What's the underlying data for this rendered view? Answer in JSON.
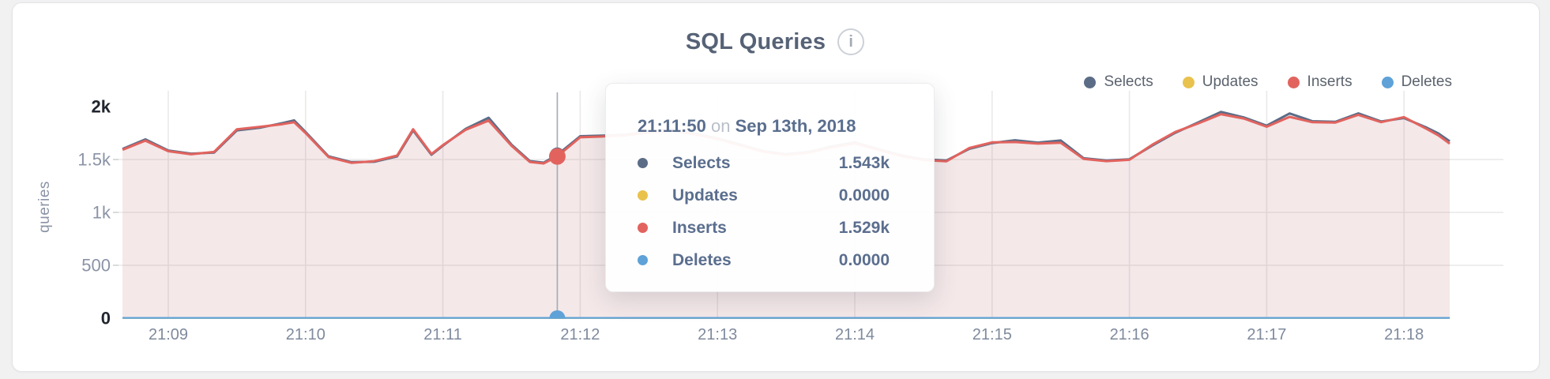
{
  "card": {
    "title": "SQL Queries",
    "info_icon_glyph": "i"
  },
  "colors": {
    "selects": "#5b6c87",
    "updates": "#e9c24d",
    "inserts": "#e2635e",
    "deletes": "#5ea2d8",
    "fill_pink": "rgba(226,99,94,0.10)",
    "fill_slate": "rgba(91,108,135,0.05)",
    "grid": "#e9e9ea",
    "crosshair": "#a9adb3",
    "axis_strong": "#20252e",
    "axis_muted": "#8a93a6",
    "x_label": "#7f8a9d"
  },
  "legend": [
    {
      "label": "Selects",
      "color": "#5b6c87"
    },
    {
      "label": "Updates",
      "color": "#e9c24d"
    },
    {
      "label": "Inserts",
      "color": "#e2635e"
    },
    {
      "label": "Deletes",
      "color": "#5ea2d8"
    }
  ],
  "tooltip": {
    "time": "21:11:50",
    "conjunction": "on",
    "date": "Sep 13th, 2018",
    "rows": [
      {
        "label": "Selects",
        "value": "1.543k",
        "color": "#5b6c87"
      },
      {
        "label": "Updates",
        "value": "0.0000",
        "color": "#e9c24d"
      },
      {
        "label": "Inserts",
        "value": "1.529k",
        "color": "#e2635e"
      },
      {
        "label": "Deletes",
        "value": "0.0000",
        "color": "#5ea2d8"
      }
    ]
  },
  "chart_data": {
    "type": "area",
    "title": "SQL Queries",
    "ylabel": "queries",
    "ylim": [
      0,
      2000
    ],
    "grid": true,
    "legend_position": "top-right",
    "x_range": [
      "21:08:40",
      "21:18:20"
    ],
    "x_ticks": [
      "21:09",
      "21:10",
      "21:11",
      "21:12",
      "21:13",
      "21:14",
      "21:15",
      "21:16",
      "21:17",
      "21:18"
    ],
    "y_ticks": [
      {
        "value": 2000,
        "label": "2k",
        "strong": true,
        "gridline": false
      },
      {
        "value": 1500,
        "label": "1.5k",
        "strong": false,
        "gridline": true
      },
      {
        "value": 1000,
        "label": "1k",
        "strong": false,
        "gridline": true
      },
      {
        "value": 500,
        "label": "500",
        "strong": false,
        "gridline": true
      },
      {
        "value": 0,
        "label": "0",
        "strong": true,
        "gridline": false
      }
    ],
    "crosshair": {
      "time": "21:11:50",
      "values": {
        "Selects": 1543,
        "Updates": 0,
        "Inserts": 1529,
        "Deletes": 0
      }
    },
    "series": [
      {
        "name": "Selects",
        "color": "#5b6c87",
        "type": "line+area"
      },
      {
        "name": "Updates",
        "color": "#e9c24d",
        "type": "line",
        "constant": 0
      },
      {
        "name": "Inserts",
        "color": "#e2635e",
        "type": "line+area"
      },
      {
        "name": "Deletes",
        "color": "#5ea2d8",
        "type": "line",
        "constant": 0
      }
    ],
    "points": [
      [
        "21:08:40",
        1600,
        1592
      ],
      [
        "21:08:50",
        1690,
        1678
      ],
      [
        "21:09:00",
        1585,
        1578
      ],
      [
        "21:09:10",
        1555,
        1549
      ],
      [
        "21:09:20",
        1565,
        1572
      ],
      [
        "21:09:30",
        1775,
        1786
      ],
      [
        "21:09:40",
        1800,
        1809
      ],
      [
        "21:09:50",
        1845,
        1834
      ],
      [
        "21:09:55",
        1870,
        1852
      ],
      [
        "21:10:00",
        1760,
        1750
      ],
      [
        "21:10:10",
        1530,
        1523
      ],
      [
        "21:10:20",
        1475,
        1469
      ],
      [
        "21:10:30",
        1478,
        1484
      ],
      [
        "21:10:40",
        1530,
        1537
      ],
      [
        "21:10:47",
        1775,
        1786
      ],
      [
        "21:10:55",
        1545,
        1552
      ],
      [
        "21:11:00",
        1630,
        1636
      ],
      [
        "21:11:10",
        1790,
        1781
      ],
      [
        "21:11:20",
        1895,
        1868
      ],
      [
        "21:11:30",
        1640,
        1630
      ],
      [
        "21:11:38",
        1485,
        1477
      ],
      [
        "21:11:44",
        1470,
        1463
      ],
      [
        "21:11:50",
        1543,
        1529
      ],
      [
        "21:12:00",
        1720,
        1710
      ],
      [
        "21:12:10",
        1725,
        1718
      ],
      [
        "21:12:20",
        1735,
        1728
      ],
      [
        "21:12:30",
        1765,
        1755
      ],
      [
        "21:12:40",
        1785,
        1773
      ],
      [
        "21:12:50",
        1745,
        1738
      ],
      [
        "21:13:00",
        1700,
        1693
      ],
      [
        "21:13:10",
        1640,
        1633
      ],
      [
        "21:13:20",
        1580,
        1573
      ],
      [
        "21:13:30",
        1550,
        1543
      ],
      [
        "21:13:40",
        1572,
        1565
      ],
      [
        "21:13:50",
        1625,
        1615
      ],
      [
        "21:14:00",
        1662,
        1652
      ],
      [
        "21:14:10",
        1600,
        1593
      ],
      [
        "21:14:20",
        1540,
        1533
      ],
      [
        "21:14:30",
        1502,
        1495
      ],
      [
        "21:14:40",
        1490,
        1483
      ],
      [
        "21:14:50",
        1600,
        1608
      ],
      [
        "21:15:00",
        1655,
        1662
      ],
      [
        "21:15:10",
        1682,
        1665
      ],
      [
        "21:15:20",
        1660,
        1650
      ],
      [
        "21:15:30",
        1680,
        1658
      ],
      [
        "21:15:40",
        1512,
        1505
      ],
      [
        "21:15:50",
        1490,
        1484
      ],
      [
        "21:16:00",
        1502,
        1497
      ],
      [
        "21:16:10",
        1632,
        1640
      ],
      [
        "21:16:20",
        1752,
        1760
      ],
      [
        "21:16:30",
        1850,
        1840
      ],
      [
        "21:16:40",
        1950,
        1928
      ],
      [
        "21:16:50",
        1898,
        1887
      ],
      [
        "21:17:00",
        1820,
        1810
      ],
      [
        "21:17:10",
        1935,
        1903
      ],
      [
        "21:17:20",
        1862,
        1852
      ],
      [
        "21:17:30",
        1856,
        1849
      ],
      [
        "21:17:40",
        1936,
        1922
      ],
      [
        "21:17:50",
        1860,
        1853
      ],
      [
        "21:18:00",
        1892,
        1900
      ],
      [
        "21:18:10",
        1800,
        1788
      ],
      [
        "21:18:15",
        1746,
        1728
      ],
      [
        "21:18:20",
        1672,
        1650
      ]
    ]
  }
}
